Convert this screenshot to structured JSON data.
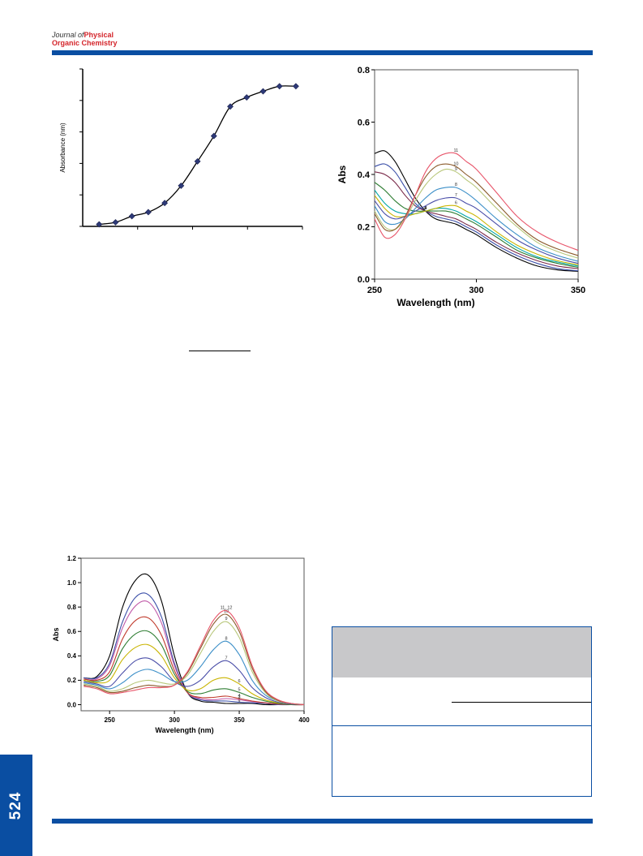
{
  "journal": {
    "line1_prefix": "Journal of",
    "line1_strong": "Physical",
    "line2": "Organic Chemistry"
  },
  "page_number": "524",
  "colors": {
    "brand_blue": "#0a4ea2",
    "brand_red": "#d4252b",
    "table_header_gray": "#c8c8ca"
  },
  "chart_data": [
    {
      "type": "line",
      "ylabel": "Absorbance (nm)",
      "xlabel": "",
      "x": [
        1,
        2,
        3,
        4,
        5,
        6,
        7,
        8,
        9,
        10,
        11,
        12,
        13
      ],
      "y": [
        0.2,
        0.4,
        1.0,
        1.4,
        2.3,
        4.0,
        6.4,
        8.9,
        11.8,
        12.7,
        13.3,
        13.8,
        13.8
      ]
    },
    {
      "type": "line",
      "xlabel": "Wavelength (nm)",
      "ylabel": "Abs",
      "xlim": [
        250,
        350
      ],
      "ylim": [
        0,
        0.8
      ],
      "xticks": [
        "250",
        "300",
        "350"
      ],
      "yticks": [
        "0.0",
        "0.2",
        "0.4",
        "0.6",
        "0.8"
      ],
      "x": [
        250,
        255,
        260,
        265,
        270,
        275,
        280,
        285,
        290,
        295,
        300,
        310,
        320,
        330,
        340,
        350
      ],
      "series": [
        {
          "name": "1",
          "color": "#000000",
          "values": [
            0.48,
            0.49,
            0.45,
            0.38,
            0.31,
            0.26,
            0.23,
            0.22,
            0.21,
            0.19,
            0.17,
            0.12,
            0.08,
            0.05,
            0.035,
            0.03
          ]
        },
        {
          "name": "2",
          "color": "#3b4fa8",
          "values": [
            0.43,
            0.44,
            0.41,
            0.35,
            0.29,
            0.26,
            0.24,
            0.23,
            0.22,
            0.2,
            0.18,
            0.13,
            0.09,
            0.06,
            0.04,
            0.032
          ]
        },
        {
          "name": "3",
          "color": "#7a2a4a",
          "values": [
            0.41,
            0.4,
            0.37,
            0.32,
            0.28,
            0.26,
            0.25,
            0.24,
            0.23,
            0.21,
            0.19,
            0.14,
            0.1,
            0.07,
            0.05,
            0.04
          ]
        },
        {
          "name": "4",
          "color": "#2e7d32",
          "values": [
            0.37,
            0.34,
            0.3,
            0.27,
            0.26,
            0.26,
            0.26,
            0.26,
            0.25,
            0.23,
            0.21,
            0.16,
            0.11,
            0.08,
            0.06,
            0.045
          ]
        },
        {
          "name": "5",
          "color": "#00a6a6",
          "values": [
            0.34,
            0.29,
            0.26,
            0.25,
            0.25,
            0.26,
            0.27,
            0.27,
            0.26,
            0.24,
            0.22,
            0.17,
            0.12,
            0.085,
            0.065,
            0.05
          ]
        },
        {
          "name": "6",
          "color": "#c9b400",
          "values": [
            0.32,
            0.27,
            0.24,
            0.24,
            0.25,
            0.26,
            0.27,
            0.28,
            0.28,
            0.26,
            0.24,
            0.18,
            0.13,
            0.095,
            0.07,
            0.055
          ]
        },
        {
          "name": "7",
          "color": "#4a4ea8",
          "values": [
            0.3,
            0.25,
            0.23,
            0.24,
            0.26,
            0.28,
            0.3,
            0.31,
            0.31,
            0.29,
            0.27,
            0.21,
            0.15,
            0.11,
            0.08,
            0.06
          ]
        },
        {
          "name": "8",
          "color": "#3c8fc8",
          "values": [
            0.28,
            0.22,
            0.21,
            0.23,
            0.27,
            0.31,
            0.34,
            0.35,
            0.35,
            0.33,
            0.3,
            0.23,
            0.17,
            0.12,
            0.09,
            0.068
          ]
        },
        {
          "name": "9",
          "color": "#b8c77a",
          "values": [
            0.26,
            0.2,
            0.19,
            0.23,
            0.3,
            0.36,
            0.4,
            0.42,
            0.41,
            0.38,
            0.35,
            0.27,
            0.2,
            0.14,
            0.105,
            0.08
          ]
        },
        {
          "name": "10",
          "color": "#8b5a2b",
          "values": [
            0.25,
            0.19,
            0.19,
            0.24,
            0.32,
            0.39,
            0.43,
            0.44,
            0.43,
            0.4,
            0.37,
            0.29,
            0.21,
            0.15,
            0.115,
            0.09
          ]
        },
        {
          "name": "11",
          "color": "#e8556a",
          "values": [
            0.23,
            0.16,
            0.17,
            0.23,
            0.32,
            0.41,
            0.46,
            0.48,
            0.48,
            0.45,
            0.42,
            0.33,
            0.24,
            0.18,
            0.14,
            0.11
          ]
        }
      ]
    },
    {
      "type": "line",
      "xlabel": "Wavelength (nm)",
      "ylabel": "Abs",
      "xlim": [
        228,
        400
      ],
      "ylim": [
        -0.05,
        1.2
      ],
      "xticks": [
        "250",
        "300",
        "350",
        "400"
      ],
      "yticks": [
        "0.0",
        "0.2",
        "0.4",
        "0.6",
        "0.8",
        "1.0",
        "1.2"
      ],
      "x": [
        230,
        240,
        250,
        260,
        270,
        280,
        290,
        300,
        310,
        320,
        330,
        340,
        350,
        360,
        370,
        380,
        390,
        400
      ],
      "series": [
        {
          "name": "1",
          "color": "#000000",
          "values": [
            0.22,
            0.23,
            0.4,
            0.8,
            1.02,
            1.06,
            0.85,
            0.4,
            0.1,
            0.03,
            0.02,
            0.01,
            0.01,
            0.01,
            0.0,
            0.0,
            0.0,
            0.0
          ]
        },
        {
          "name": "2",
          "color": "#3b4fa8",
          "values": [
            0.22,
            0.22,
            0.34,
            0.68,
            0.88,
            0.9,
            0.72,
            0.34,
            0.1,
            0.04,
            0.03,
            0.03,
            0.02,
            0.015,
            0.01,
            0.0,
            0.0,
            0.0
          ]
        },
        {
          "name": "3",
          "color": "#c05aa8",
          "values": [
            0.21,
            0.21,
            0.32,
            0.63,
            0.81,
            0.84,
            0.67,
            0.32,
            0.1,
            0.05,
            0.04,
            0.05,
            0.04,
            0.025,
            0.015,
            0.005,
            0.0,
            0.0
          ]
        },
        {
          "name": "4",
          "color": "#c0392b",
          "values": [
            0.21,
            0.2,
            0.27,
            0.54,
            0.69,
            0.71,
            0.57,
            0.28,
            0.1,
            0.06,
            0.06,
            0.07,
            0.05,
            0.03,
            0.015,
            0.005,
            0.0,
            0.0
          ]
        },
        {
          "name": "5",
          "color": "#2e7d32",
          "values": [
            0.2,
            0.19,
            0.24,
            0.46,
            0.58,
            0.6,
            0.49,
            0.25,
            0.11,
            0.09,
            0.12,
            0.13,
            0.1,
            0.06,
            0.03,
            0.01,
            0.0,
            0.0
          ]
        },
        {
          "name": "6",
          "color": "#c9b400",
          "values": [
            0.2,
            0.18,
            0.2,
            0.37,
            0.47,
            0.49,
            0.4,
            0.22,
            0.12,
            0.13,
            0.2,
            0.22,
            0.17,
            0.09,
            0.04,
            0.015,
            0.005,
            0.0
          ]
        },
        {
          "name": "7",
          "color": "#4a4ea8",
          "values": [
            0.19,
            0.17,
            0.15,
            0.26,
            0.36,
            0.38,
            0.31,
            0.19,
            0.15,
            0.2,
            0.31,
            0.36,
            0.28,
            0.14,
            0.06,
            0.02,
            0.005,
            0.0
          ]
        },
        {
          "name": "8",
          "color": "#3c8fc8",
          "values": [
            0.18,
            0.16,
            0.13,
            0.18,
            0.26,
            0.29,
            0.25,
            0.19,
            0.2,
            0.31,
            0.45,
            0.52,
            0.41,
            0.2,
            0.08,
            0.03,
            0.01,
            0.0
          ]
        },
        {
          "name": "9",
          "color": "#b8c77a",
          "values": [
            0.17,
            0.15,
            0.11,
            0.13,
            0.18,
            0.2,
            0.18,
            0.17,
            0.24,
            0.42,
            0.6,
            0.68,
            0.55,
            0.27,
            0.1,
            0.03,
            0.01,
            0.0
          ]
        },
        {
          "name": "10",
          "color": "#8b5a2b",
          "values": [
            0.16,
            0.14,
            0.1,
            0.11,
            0.14,
            0.16,
            0.15,
            0.16,
            0.26,
            0.46,
            0.66,
            0.74,
            0.6,
            0.3,
            0.11,
            0.035,
            0.01,
            0.0
          ]
        },
        {
          "name": "11, 12",
          "color": "#e8556a",
          "values": [
            0.15,
            0.13,
            0.09,
            0.1,
            0.12,
            0.14,
            0.14,
            0.16,
            0.27,
            0.48,
            0.69,
            0.77,
            0.63,
            0.32,
            0.12,
            0.04,
            0.01,
            0.0
          ]
        }
      ]
    }
  ]
}
